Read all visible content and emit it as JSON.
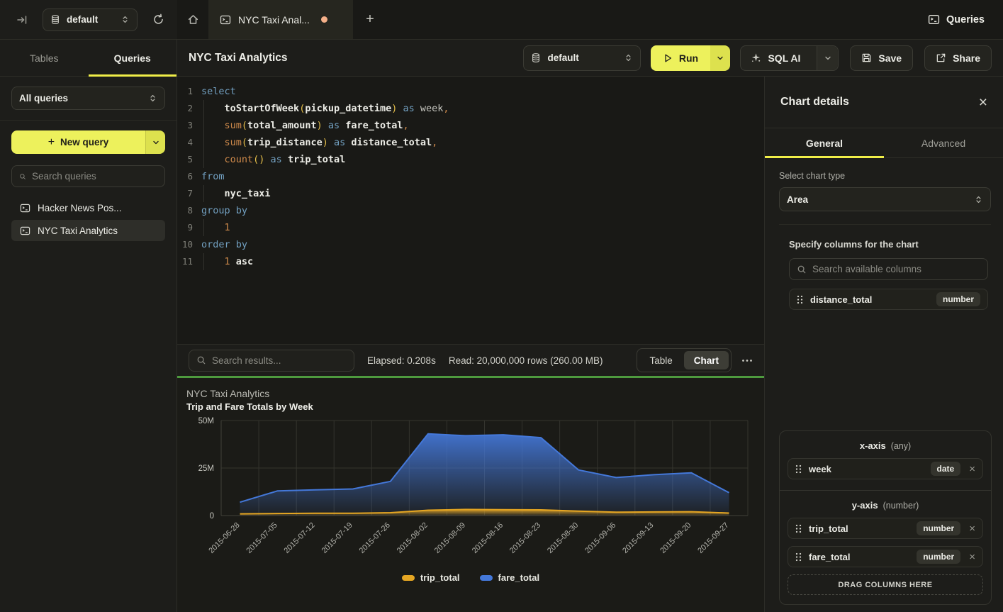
{
  "topbar": {
    "database": "default",
    "tab_label": "NYC Taxi Anal...",
    "queries_label": "Queries"
  },
  "sidebar": {
    "tabs": [
      {
        "label": "Tables",
        "active": false
      },
      {
        "label": "Queries",
        "active": true
      }
    ],
    "filter_select": "All queries",
    "new_query_label": "New query",
    "search_placeholder": "Search queries",
    "items": [
      {
        "label": "Hacker News Pos...",
        "active": false
      },
      {
        "label": "NYC Taxi Analytics",
        "active": true
      }
    ]
  },
  "main": {
    "title": "NYC Taxi Analytics",
    "toolbar": {
      "database": "default",
      "run": "Run",
      "sql_ai": "SQL AI",
      "save": "Save",
      "share": "Share"
    },
    "editor": {
      "lines": [
        {
          "n": "1",
          "ind": 0,
          "tokens": [
            [
              "kw",
              "select"
            ]
          ]
        },
        {
          "n": "2",
          "ind": 1,
          "tokens": [
            [
              "id",
              "toStartOfWeek"
            ],
            [
              "pa",
              "("
            ],
            [
              "id",
              "pickup_datetime"
            ],
            [
              "pa",
              ")"
            ],
            [
              "kw",
              " as "
            ],
            [
              "al",
              "week"
            ],
            [
              "pu",
              ","
            ]
          ]
        },
        {
          "n": "3",
          "ind": 1,
          "tokens": [
            [
              "fn",
              "sum"
            ],
            [
              "pa",
              "("
            ],
            [
              "id",
              "total_amount"
            ],
            [
              "pa",
              ")"
            ],
            [
              "kw",
              " as "
            ],
            [
              "id",
              "fare_total"
            ],
            [
              "pu",
              ","
            ]
          ]
        },
        {
          "n": "4",
          "ind": 1,
          "tokens": [
            [
              "fn",
              "sum"
            ],
            [
              "pa",
              "("
            ],
            [
              "id",
              "trip_distance"
            ],
            [
              "pa",
              ")"
            ],
            [
              "kw",
              " as "
            ],
            [
              "id",
              "distance_total"
            ],
            [
              "pu",
              ","
            ]
          ]
        },
        {
          "n": "5",
          "ind": 1,
          "tokens": [
            [
              "fn",
              "count"
            ],
            [
              "pa",
              "()"
            ],
            [
              "kw",
              " as "
            ],
            [
              "id",
              "trip_total"
            ]
          ]
        },
        {
          "n": "6",
          "ind": 0,
          "tokens": [
            [
              "kw",
              "from"
            ]
          ]
        },
        {
          "n": "7",
          "ind": 1,
          "tokens": [
            [
              "id",
              "nyc_taxi"
            ]
          ]
        },
        {
          "n": "8",
          "ind": 0,
          "tokens": [
            [
              "kw",
              "group by"
            ]
          ]
        },
        {
          "n": "9",
          "ind": 1,
          "tokens": [
            [
              "nu",
              "1"
            ]
          ]
        },
        {
          "n": "10",
          "ind": 0,
          "tokens": [
            [
              "kw",
              "order by"
            ]
          ]
        },
        {
          "n": "11",
          "ind": 1,
          "tokens": [
            [
              "nu",
              "1"
            ],
            [
              "id",
              " asc"
            ]
          ]
        }
      ]
    },
    "results": {
      "search_placeholder": "Search results...",
      "elapsed": "Elapsed: 0.208s",
      "read": "Read: 20,000,000 rows (260.00 MB)",
      "views": [
        {
          "label": "Table",
          "active": false
        },
        {
          "label": "Chart",
          "active": true
        }
      ]
    }
  },
  "chart_data": {
    "type": "area",
    "title": "NYC Taxi Analytics",
    "subtitle": "Trip and Fare Totals by Week",
    "x": [
      "2015-06-28",
      "2015-07-05",
      "2015-07-12",
      "2015-07-19",
      "2015-07-26",
      "2015-08-02",
      "2015-08-09",
      "2015-08-16",
      "2015-08-23",
      "2015-08-30",
      "2015-09-06",
      "2015-09-13",
      "2015-09-20",
      "2015-09-27"
    ],
    "series": [
      {
        "name": "trip_total",
        "color": "#e5a623",
        "values_millions": [
          0.9,
          1.1,
          1.2,
          1.2,
          1.5,
          2.8,
          3.2,
          3.1,
          3.0,
          2.3,
          1.8,
          1.9,
          2.0,
          1.3
        ]
      },
      {
        "name": "fare_total",
        "color": "#4478d9",
        "values_millions": [
          7,
          13,
          13.5,
          14,
          18,
          43,
          42,
          42.5,
          41,
          24,
          20,
          21.5,
          22.5,
          12
        ]
      }
    ],
    "ylim_millions": [
      0,
      50
    ],
    "yticks": [
      {
        "value": 0,
        "label": "0"
      },
      {
        "value": 25,
        "label": "25M"
      },
      {
        "value": 50,
        "label": "50M"
      }
    ],
    "grid": true,
    "legend_position": "bottom"
  },
  "chart_panel": {
    "title": "Chart details",
    "tabs": [
      {
        "label": "General",
        "active": true
      },
      {
        "label": "Advanced",
        "active": false
      }
    ],
    "chart_type_label": "Select chart type",
    "chart_type": "Area",
    "columns_label": "Specify columns for the chart",
    "search_placeholder": "Search available columns",
    "available_columns": [
      {
        "name": "distance_total",
        "type": "number"
      }
    ],
    "x_axis": {
      "title": "x-axis",
      "hint": "(any)",
      "items": [
        {
          "name": "week",
          "type": "date"
        }
      ]
    },
    "y_axis": {
      "title": "y-axis",
      "hint": "(number)",
      "items": [
        {
          "name": "trip_total",
          "type": "number"
        },
        {
          "name": "fare_total",
          "type": "number"
        }
      ]
    },
    "drop_label": "DRAG COLUMNS HERE"
  }
}
